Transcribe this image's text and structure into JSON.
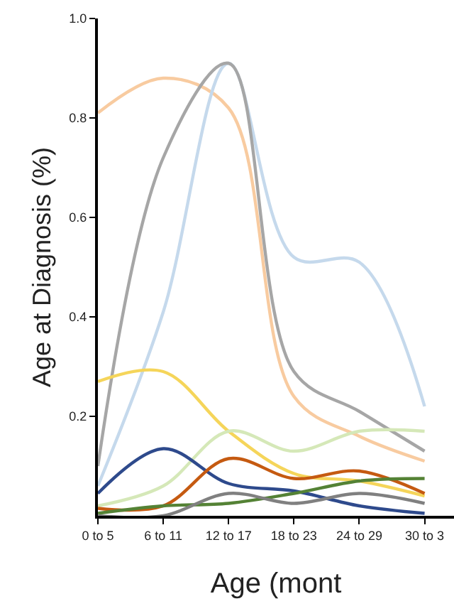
{
  "chart_data": {
    "type": "line",
    "xlabel": "Age (mont",
    "ylabel": "Age at Diagnosis (%)",
    "categories": [
      "0 to 5",
      "6 to 11",
      "12 to 17",
      "18 to 23",
      "24 to 29",
      "30 to 3"
    ],
    "series": [
      {
        "color": "#f8cba0",
        "values": [
          0.81,
          0.88,
          0.82,
          0.24,
          0.16,
          0.11
        ]
      },
      {
        "color": "#c5d9ec",
        "values": [
          0.06,
          0.41,
          0.91,
          0.52,
          0.51,
          0.22
        ]
      },
      {
        "color": "#a6a6a6",
        "values": [
          0.1,
          0.72,
          0.91,
          0.29,
          0.21,
          0.13
        ]
      },
      {
        "color": "#f5d55a",
        "values": [
          0.27,
          0.29,
          0.17,
          0.085,
          0.07,
          0.04
        ]
      },
      {
        "color": "#d5e8b8",
        "values": [
          0.02,
          0.06,
          0.17,
          0.13,
          0.17,
          0.17
        ]
      },
      {
        "color": "#2e4a8c",
        "values": [
          0.045,
          0.135,
          0.065,
          0.05,
          0.02,
          0.005
        ]
      },
      {
        "color": "#c55a11",
        "values": [
          0.015,
          0.02,
          0.115,
          0.075,
          0.09,
          0.045
        ]
      },
      {
        "color": "#548235",
        "values": [
          0.005,
          0.02,
          0.025,
          0.045,
          0.07,
          0.075
        ]
      },
      {
        "color": "#808080",
        "values": [
          0.0,
          0.0,
          0.045,
          0.025,
          0.045,
          0.025
        ]
      }
    ],
    "ylim": [
      0,
      1
    ],
    "yticks": [
      0.2,
      0.4,
      0.6,
      0.8,
      {
        "value": 1,
        "label": "1.0"
      }
    ],
    "marker": "none",
    "line_style": "solid"
  }
}
